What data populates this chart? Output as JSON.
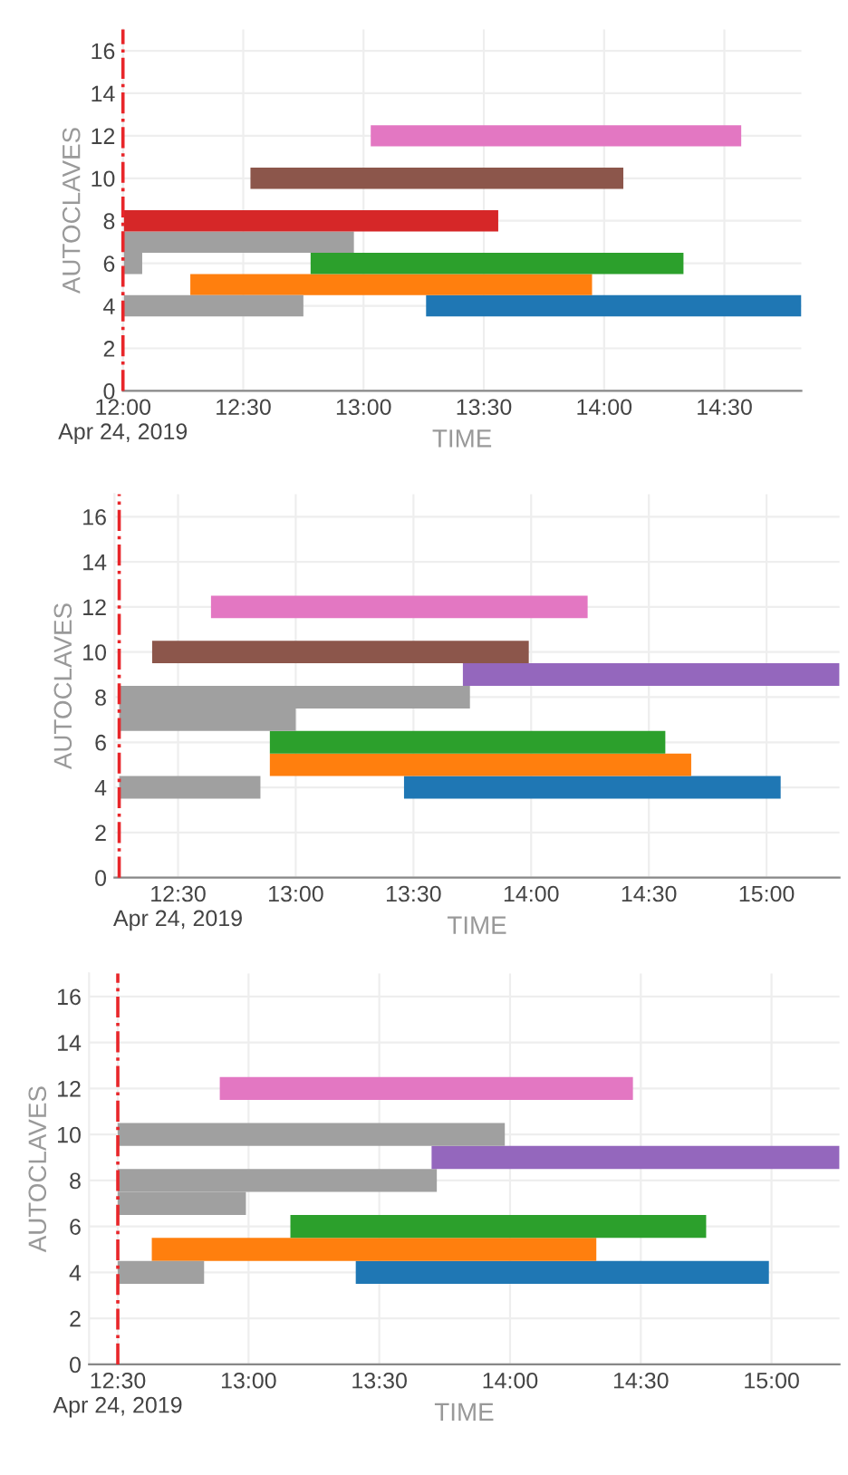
{
  "chart_data": [
    {
      "type": "bar",
      "orientation": "horizontal",
      "xlabel": "TIME",
      "ylabel": "AUTOCLAVES",
      "series": [
        {
          "x": [
            4,
            5,
            6,
            7,
            8,
            10,
            12
          ],
          "base": [
            13.26,
            12.28,
            12.78,
            12.0,
            12.0,
            12.53,
            13.03
          ],
          "values": [
            1.56,
            1.67,
            1.55,
            0.96,
            1.56,
            1.55,
            1.54
          ],
          "colors": [
            "#1f77b4",
            "#ff7f0e",
            "#2ca02c",
            "#a0a0a0",
            "#d62728",
            "#8c564b",
            "#e377c2"
          ]
        },
        {
          "x": [
            4,
            6
          ],
          "base": [
            12.0,
            12.0
          ],
          "values": [
            0.75,
            0.08
          ],
          "colors": [
            "#a0a0a0",
            "#a0a0a0"
          ]
        }
      ],
      "xlim": [
        12.0,
        14.82
      ],
      "xticks": [
        {
          "value": 12.0,
          "label": "12:00\nApr 24, 2019"
        },
        {
          "value": 12.5,
          "label": "12:30"
        },
        {
          "value": 13.0,
          "label": "13:00"
        },
        {
          "value": 13.5,
          "label": "13:30"
        },
        {
          "value": 14.0,
          "label": "14:00"
        },
        {
          "value": 14.5,
          "label": "14:30"
        }
      ],
      "ylim": [
        0,
        17
      ],
      "yticks": [
        0,
        2,
        4,
        6,
        8,
        10,
        12,
        14,
        16
      ],
      "grid": true,
      "ref_lines": [
        {
          "axis": "x",
          "value": 12.0,
          "color": "#e8262a",
          "line_style": "dashed"
        }
      ]
    },
    {
      "type": "bar",
      "orientation": "horizontal",
      "xlabel": "TIME",
      "ylabel": "AUTOCLAVES",
      "series": [
        {
          "x": [
            4,
            5,
            6,
            7,
            8,
            9,
            10,
            12
          ],
          "base": [
            13.46,
            12.89,
            12.89,
            12.25,
            12.25,
            13.71,
            12.39,
            12.64
          ],
          "values": [
            1.6,
            1.79,
            1.68,
            0.75,
            1.49,
            1.6,
            1.6,
            1.6
          ],
          "colors": [
            "#1f77b4",
            "#ff7f0e",
            "#2ca02c",
            "#a0a0a0",
            "#a0a0a0",
            "#9467bd",
            "#8c564b",
            "#e377c2"
          ]
        },
        {
          "x": [
            4
          ],
          "base": [
            12.25
          ],
          "values": [
            0.6
          ],
          "colors": [
            "#a0a0a0"
          ]
        }
      ],
      "xlim": [
        12.23,
        15.31
      ],
      "xticks": [
        {
          "value": 12.5,
          "label": "12:30\nApr 24, 2019"
        },
        {
          "value": 13.0,
          "label": "13:00"
        },
        {
          "value": 13.5,
          "label": "13:30"
        },
        {
          "value": 14.0,
          "label": "14:00"
        },
        {
          "value": 14.5,
          "label": "14:30"
        },
        {
          "value": 15.0,
          "label": "15:00"
        }
      ],
      "ylim": [
        0,
        17
      ],
      "yticks": [
        0,
        2,
        4,
        6,
        8,
        10,
        12,
        14,
        16
      ],
      "grid": true,
      "ref_lines": [
        {
          "axis": "x",
          "value": 12.25,
          "color": "#e8262a",
          "line_style": "dashed"
        }
      ]
    },
    {
      "type": "bar",
      "orientation": "horizontal",
      "xlabel": "TIME",
      "ylabel": "AUTOCLAVES",
      "series": [
        {
          "x": [
            4,
            5,
            6,
            7,
            8,
            9,
            10,
            12
          ],
          "base": [
            13.41,
            12.63,
            13.16,
            12.5,
            12.5,
            13.7,
            12.5,
            12.89
          ],
          "values": [
            1.58,
            1.7,
            1.59,
            0.49,
            1.22,
            1.56,
            1.48,
            1.58
          ],
          "colors": [
            "#1f77b4",
            "#ff7f0e",
            "#2ca02c",
            "#a0a0a0",
            "#a0a0a0",
            "#9467bd",
            "#a0a0a0",
            "#e377c2"
          ]
        },
        {
          "x": [
            4
          ],
          "base": [
            12.5
          ],
          "values": [
            0.33
          ],
          "colors": [
            "#a0a0a0"
          ]
        }
      ],
      "xlim": [
        12.39,
        15.26
      ],
      "xticks": [
        {
          "value": 12.5,
          "label": "12:30\nApr 24, 2019"
        },
        {
          "value": 13.0,
          "label": "13:00"
        },
        {
          "value": 13.5,
          "label": "13:30"
        },
        {
          "value": 14.0,
          "label": "14:00"
        },
        {
          "value": 14.5,
          "label": "14:30"
        },
        {
          "value": 15.0,
          "label": "15:00"
        }
      ],
      "ylim": [
        0,
        17
      ],
      "yticks": [
        0,
        2,
        4,
        6,
        8,
        10,
        12,
        14,
        16
      ],
      "grid": true,
      "ref_lines": [
        {
          "axis": "x",
          "value": 12.5,
          "color": "#e8262a",
          "line_style": "dashed"
        }
      ]
    }
  ]
}
